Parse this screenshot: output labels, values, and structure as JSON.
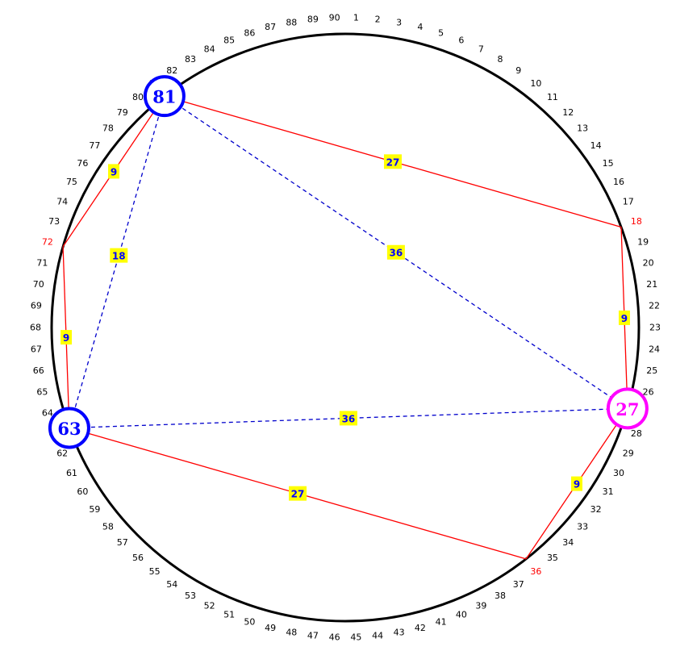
{
  "diagram": {
    "circle_positions": 90,
    "tick_label_color": "#000000",
    "highlight_label_color": "#ff0000",
    "highlighted_positions": [
      18,
      36,
      72
    ],
    "circle_stroke": "#000000",
    "solid_edge_color": "#ff0000",
    "dashed_edge_color": "#0000cc",
    "label_box_fill": "#ffff00",
    "label_text_color": "#0000ff"
  },
  "markers": [
    {
      "position": 81,
      "label": "81",
      "color": "#0000ff"
    },
    {
      "position": 63,
      "label": "63",
      "color": "#0000ff"
    },
    {
      "position": 27,
      "label": "27",
      "color": "#ff00ff"
    }
  ],
  "solid_edges": [
    {
      "from": 81,
      "to": 18,
      "label": "27"
    },
    {
      "from": 18,
      "to": 27,
      "label": "9"
    },
    {
      "from": 27,
      "to": 36,
      "label": "9"
    },
    {
      "from": 36,
      "to": 63,
      "label": "27"
    },
    {
      "from": 63,
      "to": 72,
      "label": "9"
    },
    {
      "from": 72,
      "to": 81,
      "label": "9"
    }
  ],
  "dashed_edges": [
    {
      "from": 81,
      "to": 27,
      "label": "36"
    },
    {
      "from": 63,
      "to": 27,
      "label": "36"
    },
    {
      "from": 81,
      "to": 63,
      "label": "18"
    }
  ]
}
